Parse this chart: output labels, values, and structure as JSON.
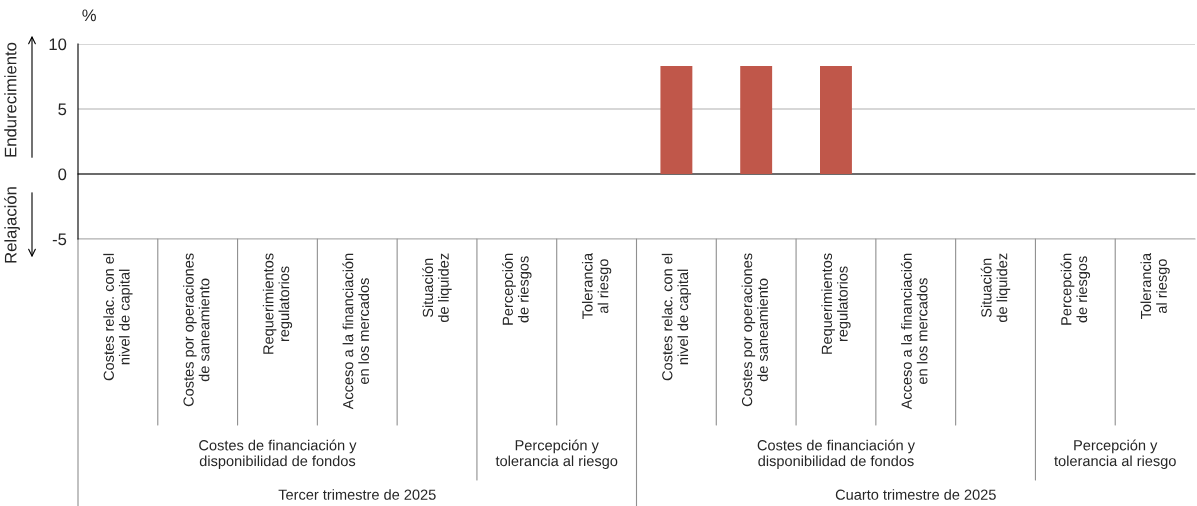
{
  "chart_data": {
    "type": "bar",
    "ylabel": "%",
    "categories": [
      "Costes relac. con el\nnivel de capital",
      "Costes por operaciones\nde saneamiento",
      "Requerimientos\nregulatorios",
      "Acceso a la financiación\nen los mercados",
      "Situación\nde liquidez",
      "Percepción\nde riesgos",
      "Tolerancia\nal riesgo",
      "Costes relac. con el\nnivel de capital",
      "Costes por operaciones\nde saneamiento",
      "Requerimientos\nregulatorios",
      "Acceso a la financiación\nen los mercados",
      "Situación\nde liquidez",
      "Percepción\nde riesgos",
      "Tolerancia\nal riesgo"
    ],
    "values": [
      0,
      0,
      0,
      0,
      0,
      0,
      0,
      8.3,
      8.3,
      8.3,
      0,
      0,
      0,
      0
    ],
    "color": "#c0574a",
    "ylim": [
      -5,
      10
    ],
    "yticks": [
      -5,
      0,
      5,
      10
    ],
    "grid": "y",
    "annotations": [
      "Costes de financiación y\ndisponibilidad de fondos",
      "Percepción y\ntolerancia al riesgo",
      "Costes de financiación y\ndisponibilidad de fondos",
      "Percepción y\ntolerancia al riesgo",
      "Tercer trimestre de 2025",
      "Cuarto trimestre de 2025",
      "Endurecimiento",
      "Relajación"
    ]
  }
}
